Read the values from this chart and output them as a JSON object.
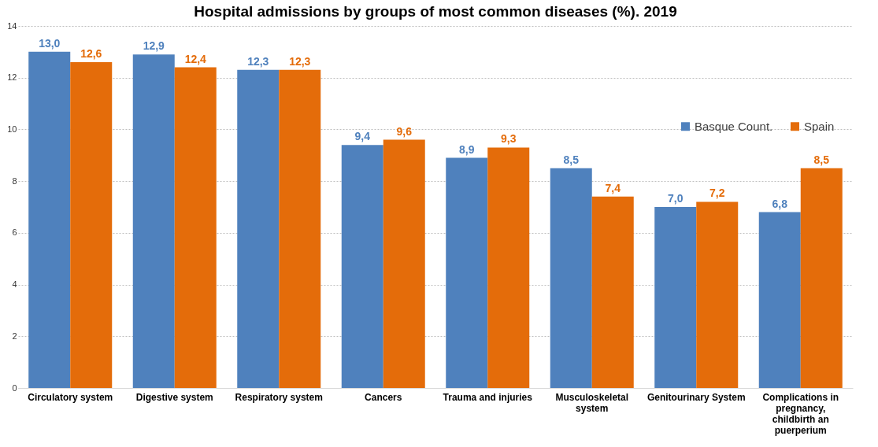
{
  "chart_data": {
    "type": "bar",
    "title": "Hospital admissions by groups of most common diseases (%). 2019",
    "categories": [
      "Circulatory system",
      "Digestive system",
      "Respiratory system",
      "Cancers",
      "Trauma and injuries",
      "Musculoskeletal system",
      "Genitourinary System",
      "Complications in pregnancy, childbirth an puerperium"
    ],
    "series": [
      {
        "name": "Basque Count.",
        "color": "#4f81bd",
        "values": [
          13.0,
          12.9,
          12.3,
          9.4,
          8.9,
          8.5,
          7.0,
          6.8
        ],
        "value_labels": [
          "13,0",
          "12,9",
          "12,3",
          "9,4",
          "8,9",
          "8,5",
          "7,0",
          "6,8"
        ]
      },
      {
        "name": "Spain",
        "color": "#e46c0a",
        "values": [
          12.6,
          12.4,
          12.3,
          9.6,
          9.3,
          7.4,
          7.2,
          8.5
        ],
        "value_labels": [
          "12,6",
          "12,4",
          "12,3",
          "9,6",
          "9,3",
          "7,4",
          "7,2",
          "8,5"
        ]
      }
    ],
    "ylim": [
      0,
      14
    ],
    "yticks": [
      0,
      2,
      4,
      6,
      8,
      10,
      12,
      14
    ],
    "grid": "y",
    "legend": "top right"
  }
}
